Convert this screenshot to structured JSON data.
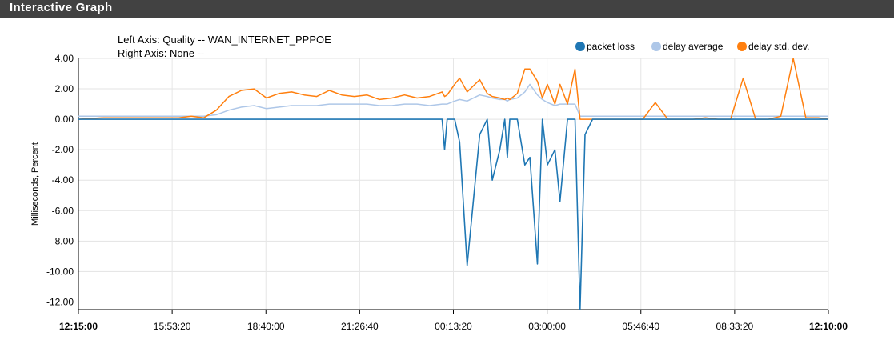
{
  "panel": {
    "title": "Interactive Graph"
  },
  "chart_data": {
    "type": "line",
    "left_axis_label": "Left Axis: Quality -- WAN_INTERNET_PPPOE",
    "right_axis_label": "Right Axis: None --",
    "ylabel": "Milliseconds, Percent",
    "ylim": [
      -12.5,
      4.0
    ],
    "y_ticks": [
      "4.00",
      "2.00",
      "0.00",
      "-2.00",
      "-4.00",
      "-6.00",
      "-8.00",
      "-10.00",
      "-12.00"
    ],
    "x_ticks": [
      "12:15:00",
      "15:53:20",
      "18:40:00",
      "21:26:40",
      "00:13:20",
      "03:00:00",
      "05:46:40",
      "08:33:20",
      "12:10:00"
    ],
    "grid": true,
    "legend_position": "top-right",
    "x_hours": [
      0,
      1,
      2,
      3,
      3.3,
      3.6,
      4,
      4.5,
      5,
      5.5,
      6,
      6.5,
      7,
      7.5,
      8,
      8.5,
      9,
      9.5,
      10,
      10.5,
      11,
      11.5,
      12,
      12.5,
      13,
      13.5,
      14,
      14.5,
      14.6,
      14.7,
      15,
      15.2,
      15.5,
      16,
      16.3,
      16.5,
      16.8,
      17,
      17.1,
      17.2,
      17.5,
      17.8,
      18,
      18.3,
      18.5,
      18.7,
      19,
      19.2,
      19.5,
      19.8,
      20,
      20.2,
      20.5,
      20.8,
      21,
      21.2,
      21.5,
      21.8,
      22,
      22.5,
      23,
      23.5,
      24,
      24.5,
      25,
      25.5,
      26,
      26.5,
      27,
      27.5,
      28,
      28.5,
      29,
      29.5,
      29.9
    ],
    "series": [
      {
        "name": "packet loss",
        "color": "#1f77b4",
        "values": [
          0,
          0,
          0,
          0,
          0,
          0,
          0,
          0,
          0,
          0,
          0,
          0,
          0,
          0,
          0,
          0,
          0,
          0,
          0,
          0,
          0,
          0,
          0,
          0,
          0,
          0,
          0,
          0,
          -2.0,
          0,
          0,
          -1.5,
          -9.6,
          -1.0,
          0,
          -4.0,
          -2.0,
          0,
          -2.5,
          0,
          0,
          -3.0,
          -2.5,
          -9.5,
          0,
          -3.0,
          -2.0,
          -5.4,
          0,
          0,
          -12.5,
          -1.0,
          0,
          0,
          0,
          0,
          0,
          0,
          0,
          0,
          0,
          0,
          0,
          0,
          0,
          0,
          0,
          0,
          0,
          0,
          0,
          0,
          0,
          0,
          0
        ]
      },
      {
        "name": "delay average",
        "color": "#aec7e8",
        "values": [
          0.2,
          0.2,
          0.2,
          0.2,
          0.2,
          0.2,
          0.2,
          0.2,
          0.2,
          0.3,
          0.6,
          0.8,
          0.9,
          0.7,
          0.8,
          0.9,
          0.9,
          0.9,
          1.0,
          1.0,
          1.0,
          1.0,
          0.9,
          0.9,
          1.0,
          1.0,
          0.9,
          1.0,
          1.0,
          1.0,
          1.2,
          1.3,
          1.2,
          1.6,
          1.5,
          1.4,
          1.3,
          1.3,
          1.2,
          1.3,
          1.4,
          1.8,
          2.3,
          1.6,
          1.3,
          1.1,
          0.9,
          1.0,
          1.0,
          1.0,
          0.2,
          0.2,
          0.2,
          0.2,
          0.2,
          0.2,
          0.2,
          0.2,
          0.2,
          0.2,
          0.2,
          0.2,
          0.2,
          0.2,
          0.2,
          0.2,
          0.2,
          0.2,
          0.2,
          0.2,
          0.2,
          0.2,
          0.2,
          0.2,
          0.2
        ]
      },
      {
        "name": "delay std. dev.",
        "color": "#ff7f0e",
        "values": [
          0.0,
          0.1,
          0.1,
          0.1,
          0.1,
          0.1,
          0.1,
          0.2,
          0.1,
          0.6,
          1.5,
          1.9,
          2.0,
          1.4,
          1.7,
          1.8,
          1.6,
          1.5,
          1.9,
          1.6,
          1.5,
          1.6,
          1.3,
          1.4,
          1.6,
          1.4,
          1.5,
          1.8,
          1.5,
          1.6,
          2.3,
          2.7,
          1.8,
          2.6,
          1.7,
          1.5,
          1.4,
          1.3,
          1.4,
          1.3,
          1.7,
          3.3,
          3.3,
          2.5,
          1.4,
          2.3,
          1.0,
          2.3,
          1.0,
          3.3,
          0.0,
          0.0,
          0.0,
          0.0,
          0.0,
          0.0,
          0.0,
          0.0,
          0.0,
          0.0,
          1.1,
          0.0,
          0.0,
          0.0,
          0.1,
          0.0,
          0.0,
          2.7,
          0.0,
          0.0,
          0.2,
          4.0,
          0.1,
          0.1,
          0.0
        ]
      }
    ]
  }
}
